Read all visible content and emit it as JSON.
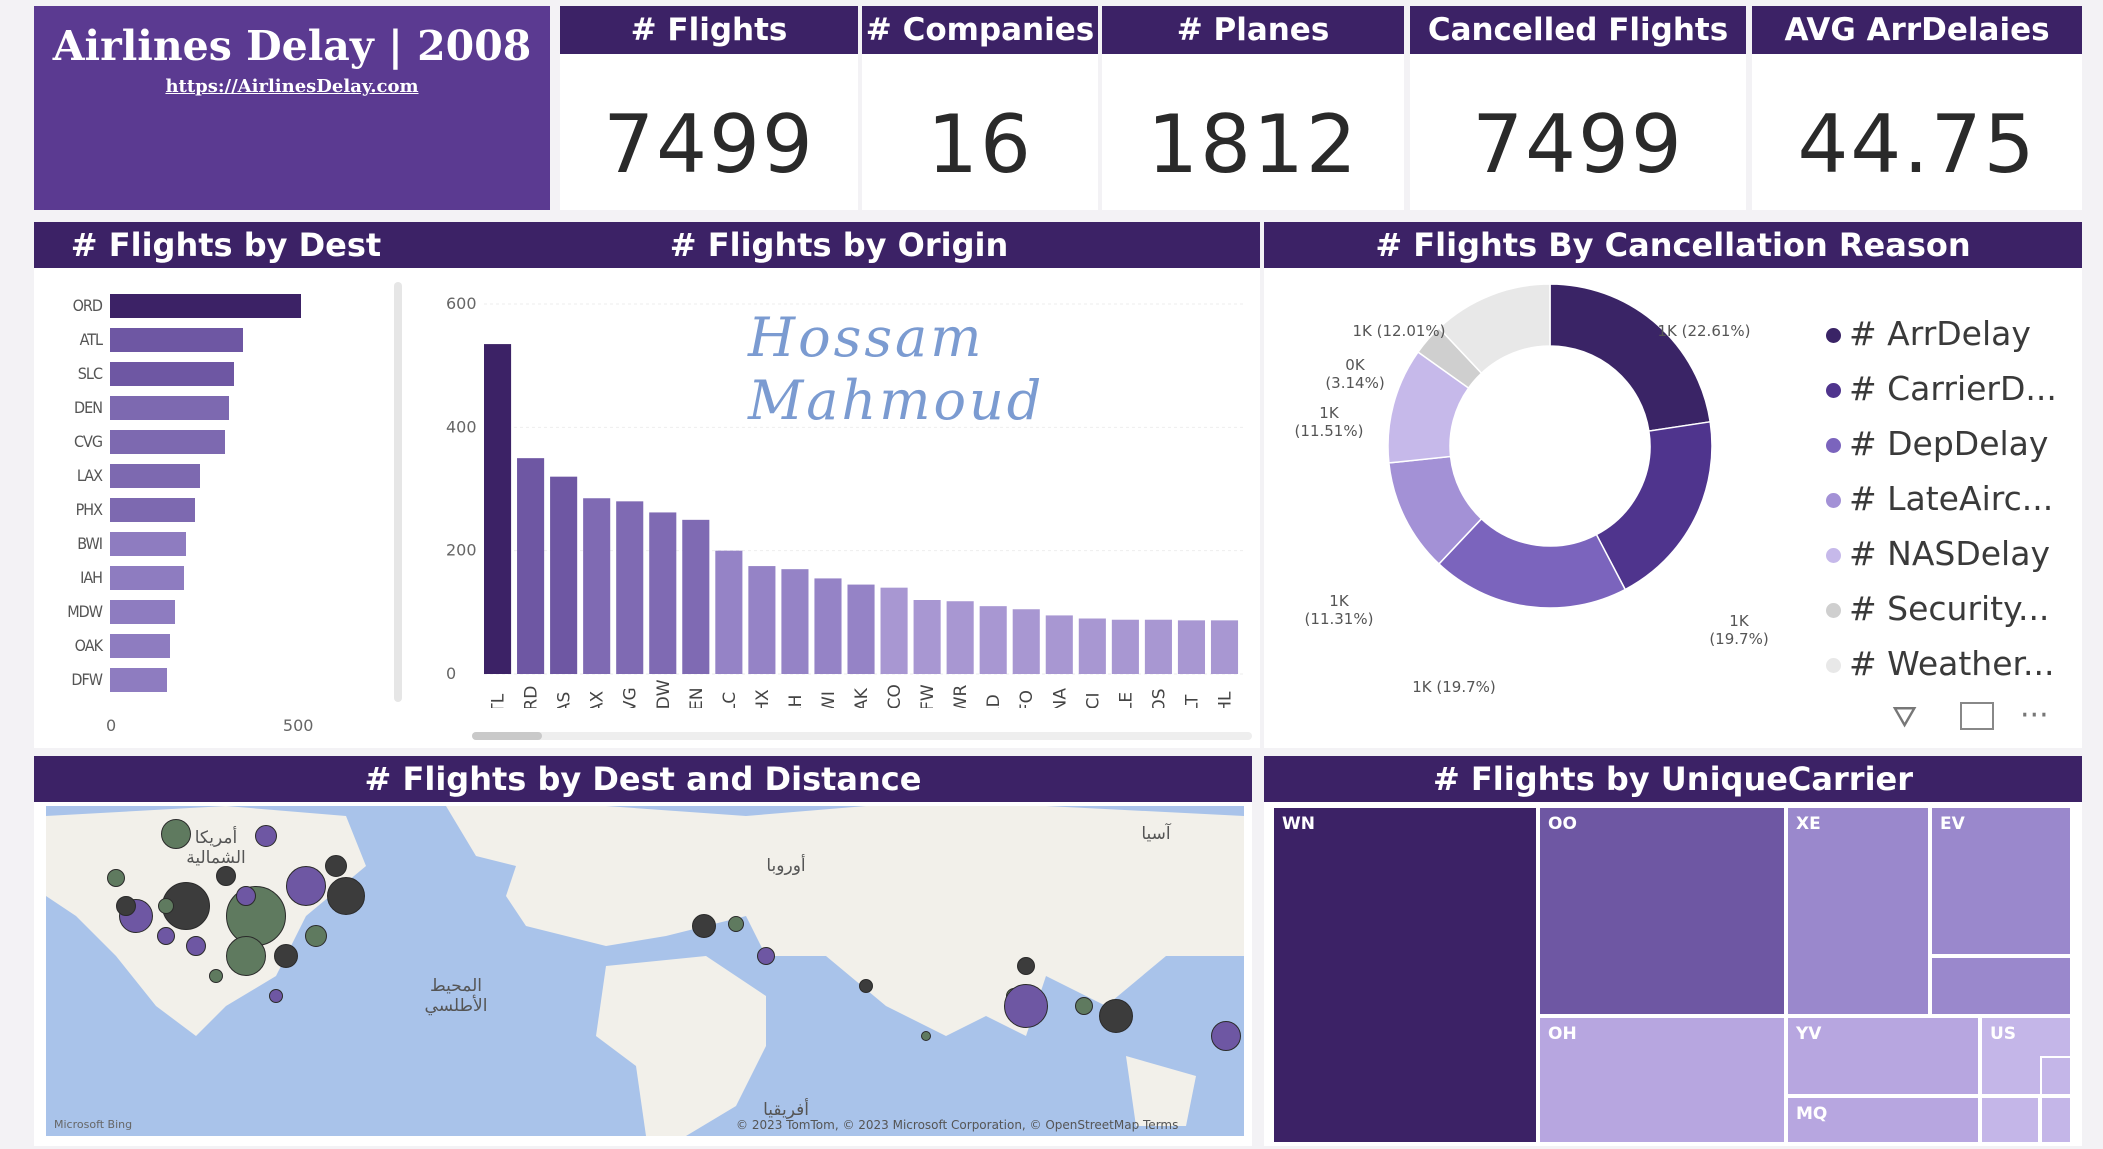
{
  "title": {
    "name": "Airlines Delay | 2008",
    "url": "https://AirlinesDelay.com"
  },
  "kpis": [
    {
      "label": "# Flights",
      "value": "7499"
    },
    {
      "label": "# Companies",
      "value": "16"
    },
    {
      "label": "# Planes",
      "value": "1812"
    },
    {
      "label": "Cancelled Flights",
      "value": "7499"
    },
    {
      "label": "AVG ArrDelaies",
      "value": "44.75"
    }
  ],
  "signature": "Hossam Mahmoud",
  "colors": {
    "header": "#3c2266",
    "title_bg": "#5b3a91",
    "bar_dark": "#3c2266",
    "bar_mid": "#6e57a3",
    "bar_light": "#a897d2",
    "map_water": "#a9c3ea",
    "map_land": "#f2f0ea"
  },
  "dest_chart": {
    "title": "# Flights by Dest",
    "chart_data": {
      "type": "bar",
      "orientation": "horizontal",
      "categories": [
        "ORD",
        "ATL",
        "SLC",
        "DEN",
        "CVG",
        "LAX",
        "PHX",
        "BWI",
        "IAH",
        "MDW",
        "OAK",
        "DFW"
      ],
      "values": [
        540,
        375,
        350,
        335,
        325,
        255,
        240,
        215,
        210,
        185,
        170,
        160
      ],
      "xlim": [
        0,
        650
      ],
      "xticks": [
        "0",
        "500"
      ]
    }
  },
  "origin_chart": {
    "title": "# Flights by Origin",
    "chart_data": {
      "type": "bar",
      "categories": [
        "ATL",
        "ORD",
        "LAS",
        "LAX",
        "CVG",
        "MDW",
        "DEN",
        "SLC",
        "PHX",
        "IAH",
        "BWI",
        "OAK",
        "MCO",
        "DFW",
        "EWR",
        "IAD",
        "SFO",
        "BNA",
        "MCI",
        "CLE",
        "BOS",
        "CLT",
        "PHL"
      ],
      "values": [
        535,
        350,
        320,
        285,
        280,
        262,
        250,
        200,
        175,
        170,
        155,
        145,
        140,
        120,
        118,
        110,
        105,
        95,
        90,
        88,
        88,
        87,
        87
      ],
      "ylim": [
        0,
        600
      ],
      "yticks": [
        "600",
        "400",
        "200",
        "0"
      ]
    }
  },
  "cancel_chart": {
    "title": "# Flights By Cancellation Reason",
    "chart_data": {
      "type": "pie",
      "labels": [
        "# ArrDelay",
        "# CarrierD...",
        "# DepDelay",
        "# LateAirc...",
        "# NASDelay",
        "# Security...",
        "# Weather..."
      ],
      "values": [
        22.61,
        19.7,
        19.7,
        11.31,
        11.51,
        3.14,
        12.01
      ],
      "slice_labels": [
        "1K (22.61%)",
        "1K (19.7%)",
        "1K (19.7%)",
        "1K (11.31%)",
        "1K (11.51%)",
        "0K (3.14%)",
        "1K (12.01%)"
      ],
      "colors": [
        "#3a2466",
        "#4f348d",
        "#7b64bd",
        "#a391d6",
        "#c6b9ea",
        "#cfcfcf",
        "#e8e8e8"
      ]
    }
  },
  "map_chart": {
    "title": "# Flights by Dest and Distance",
    "labels": {
      "north_america": "أمريكا الشمالية",
      "atlantic": "المحيط الأطلسي",
      "europe": "أوروبا",
      "asia": "آسيا",
      "africa": "أفريقيا"
    },
    "attribution": "© 2023 TomTom, © 2023 Microsoft Corporation, © OpenStreetMap Terms",
    "bing": "Microsoft Bing"
  },
  "carrier_chart": {
    "title": "# Flights by UniqueCarrier",
    "chart_data": {
      "type": "treemap",
      "categories": [
        "WN",
        "OO",
        "XE",
        "EV",
        "OH",
        "YV",
        "US",
        "MQ"
      ]
    }
  }
}
